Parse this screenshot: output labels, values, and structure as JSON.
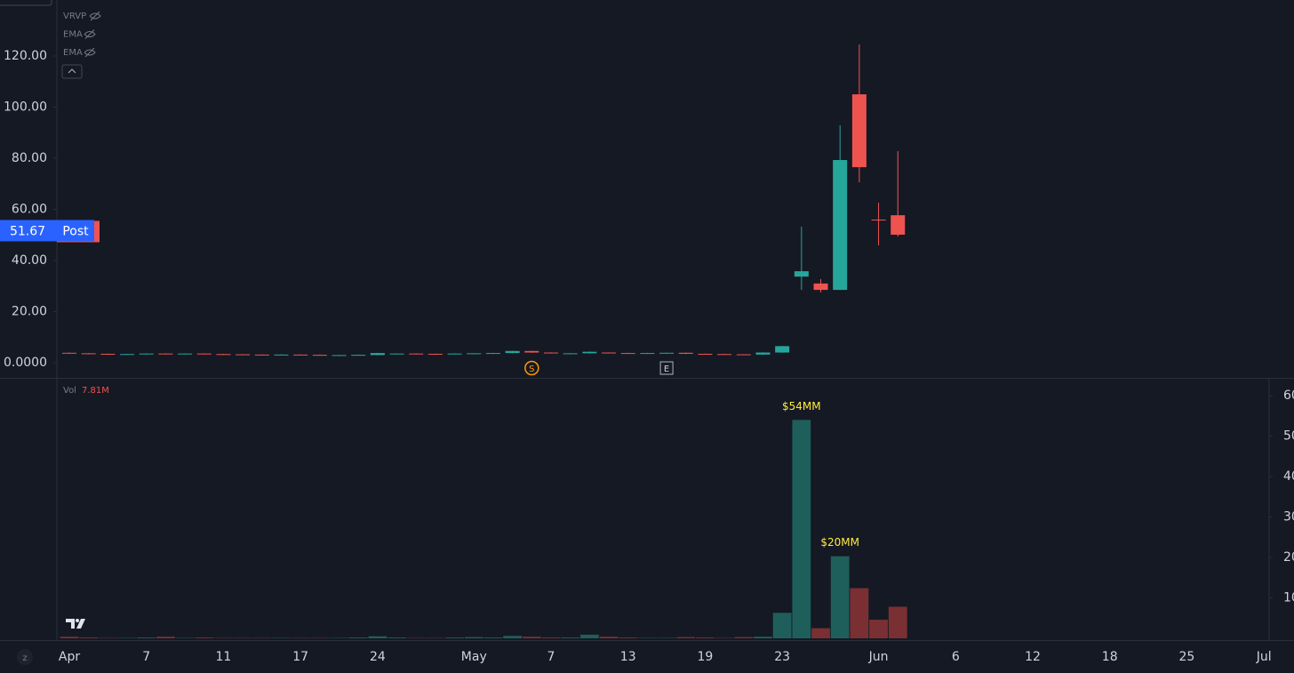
{
  "chart_data": {
    "type": "candlestick",
    "categories": [
      "Apr",
      null,
      null,
      null,
      "7",
      null,
      null,
      null,
      "11",
      null,
      null,
      null,
      "17",
      null,
      null,
      null,
      "24",
      null,
      null,
      null,
      null,
      "May",
      null,
      null,
      null,
      "7",
      null,
      null,
      null,
      "13",
      null,
      null,
      null,
      "19",
      null,
      null,
      null,
      "23",
      null,
      null,
      null,
      null,
      "Jun",
      null,
      null,
      null,
      "6",
      null,
      null,
      null,
      "12",
      null,
      null,
      null,
      "18",
      null,
      null,
      null,
      "25",
      null,
      null,
      null,
      "Jul"
    ],
    "open": [
      3.9,
      3.7,
      3.5,
      3.3,
      3.4,
      3.6,
      3.5,
      3.6,
      3.4,
      3.3,
      3.2,
      3.1,
      3.2,
      3.1,
      2.9,
      3.0,
      3.0,
      3.5,
      3.6,
      3.5,
      3.4,
      3.6,
      3.7,
      3.8,
      4.6,
      4.0,
      3.6,
      3.7,
      4.0,
      3.8,
      3.7,
      3.8,
      3.9,
      3.5,
      3.4,
      3.3,
      3.2,
      4.0,
      33.7,
      31,
      28.5,
      105,
      56,
      57.7,
      null,
      null,
      null,
      null,
      null,
      null,
      null,
      null,
      null,
      null,
      null,
      null,
      null,
      null,
      null,
      null,
      null,
      null,
      null
    ],
    "high": [
      4.0,
      3.8,
      3.6,
      3.5,
      3.7,
      3.7,
      3.7,
      3.7,
      3.5,
      3.4,
      3.3,
      3.3,
      3.3,
      3.2,
      3.1,
      3.2,
      3.9,
      3.7,
      3.7,
      3.6,
      3.7,
      3.8,
      3.9,
      4.7,
      4.7,
      4.1,
      3.8,
      4.4,
      4.1,
      3.9,
      3.9,
      4.0,
      4.0,
      3.6,
      3.5,
      3.4,
      4.1,
      6.6,
      53.2,
      32.7,
      92.9,
      124.5,
      62.6,
      82.8,
      null,
      null,
      null,
      null,
      null,
      null,
      null,
      null,
      null,
      null,
      null,
      null,
      null,
      null,
      null,
      null,
      null,
      null,
      null
    ],
    "low": [
      3.6,
      3.4,
      3.2,
      3.2,
      3.3,
      3.4,
      3.4,
      3.3,
      3.2,
      3.1,
      3.0,
      3.0,
      3.0,
      2.9,
      2.8,
      2.9,
      2.9,
      3.4,
      3.4,
      3.3,
      3.3,
      3.5,
      3.6,
      3.7,
      3.9,
      3.6,
      3.5,
      3.6,
      3.7,
      3.6,
      3.6,
      3.7,
      3.4,
      3.3,
      3.2,
      3.1,
      3.1,
      3.9,
      28.5,
      27.5,
      28.5,
      70.6,
      45.9,
      49.4,
      null,
      null,
      null,
      null,
      null,
      null,
      null,
      null,
      null,
      null,
      null,
      null,
      null,
      null,
      null,
      null,
      null,
      null,
      null
    ],
    "close": [
      3.7,
      3.5,
      3.3,
      3.4,
      3.6,
      3.5,
      3.6,
      3.4,
      3.3,
      3.2,
      3.1,
      3.2,
      3.1,
      3.0,
      3.0,
      3.1,
      3.8,
      3.6,
      3.5,
      3.4,
      3.6,
      3.7,
      3.8,
      4.6,
      4.0,
      3.7,
      3.7,
      4.3,
      3.8,
      3.7,
      3.8,
      3.9,
      3.5,
      3.4,
      3.3,
      3.2,
      4.0,
      6.5,
      35.8,
      28.5,
      79.3,
      76.5,
      55.7,
      50.1,
      null,
      null,
      null,
      null,
      null,
      null,
      null,
      null,
      null,
      null,
      null,
      null,
      null,
      null,
      null,
      null,
      null,
      null,
      null
    ],
    "up_color": "#26a69a",
    "down_color": "#ef5350",
    "ylim": [
      -5.9,
      141.9
    ],
    "yticks": [
      {
        "value": 0,
        "label": "0.0000"
      },
      {
        "value": 20,
        "label": "20.00"
      },
      {
        "value": 40,
        "label": "40.00"
      },
      {
        "value": 60,
        "label": "60.00"
      },
      {
        "value": 80,
        "label": "80.00"
      },
      {
        "value": 100,
        "label": "100.00"
      },
      {
        "value": 120,
        "label": "120.00"
      }
    ],
    "last_price": 51.67,
    "session": "Post",
    "indicators": [
      "VRVP",
      "EMA",
      "EMA"
    ],
    "event_labels": [
      null,
      null,
      null,
      null,
      null,
      null,
      null,
      null,
      null,
      null,
      null,
      null,
      null,
      null,
      null,
      null,
      null,
      null,
      null,
      null,
      null,
      null,
      null,
      null,
      "S",
      null,
      null,
      null,
      null,
      null,
      null,
      "E",
      null,
      null,
      null,
      null,
      null,
      null,
      null,
      null,
      null,
      null,
      null,
      null,
      null,
      null,
      null,
      null,
      null,
      null,
      null,
      null,
      null,
      null,
      null,
      null,
      null,
      null,
      null,
      null,
      null,
      null,
      null
    ],
    "volume": {
      "name": "Vol",
      "last_label": "7.81M",
      "up_color": "#1f5f5b",
      "down_color": "#7a3033",
      "values": [
        0.4,
        0.2,
        0.1,
        0.1,
        0.2,
        0.4,
        0.1,
        0.2,
        0.1,
        0.1,
        0.1,
        0.1,
        0.1,
        0.1,
        0.1,
        0.2,
        0.5,
        0.2,
        0.1,
        0.1,
        0.2,
        0.3,
        0.2,
        0.6,
        0.4,
        0.2,
        0.2,
        0.9,
        0.4,
        0.2,
        0.1,
        0.1,
        0.3,
        0.2,
        0.1,
        0.3,
        0.4,
        6.3,
        54,
        2.5,
        20.3,
        12.4,
        4.6,
        7.81,
        null,
        null,
        null,
        null,
        null,
        null,
        null,
        null,
        null,
        null,
        null,
        null,
        null,
        null,
        null,
        null,
        null,
        null,
        null
      ],
      "value_labels": [
        null,
        null,
        null,
        null,
        null,
        null,
        null,
        null,
        null,
        null,
        null,
        null,
        null,
        null,
        null,
        null,
        null,
        null,
        null,
        null,
        null,
        null,
        null,
        null,
        null,
        null,
        null,
        null,
        null,
        null,
        null,
        null,
        null,
        null,
        null,
        null,
        null,
        null,
        "$54MM",
        null,
        "$20MM",
        null,
        null,
        null,
        null,
        null,
        null,
        null,
        null,
        null,
        null,
        null,
        null,
        null,
        null,
        null,
        null,
        null,
        null,
        null,
        null,
        null,
        null
      ],
      "ylim": [
        0,
        61
      ],
      "yticks": [
        10,
        20,
        30,
        40,
        50,
        60
      ]
    }
  }
}
